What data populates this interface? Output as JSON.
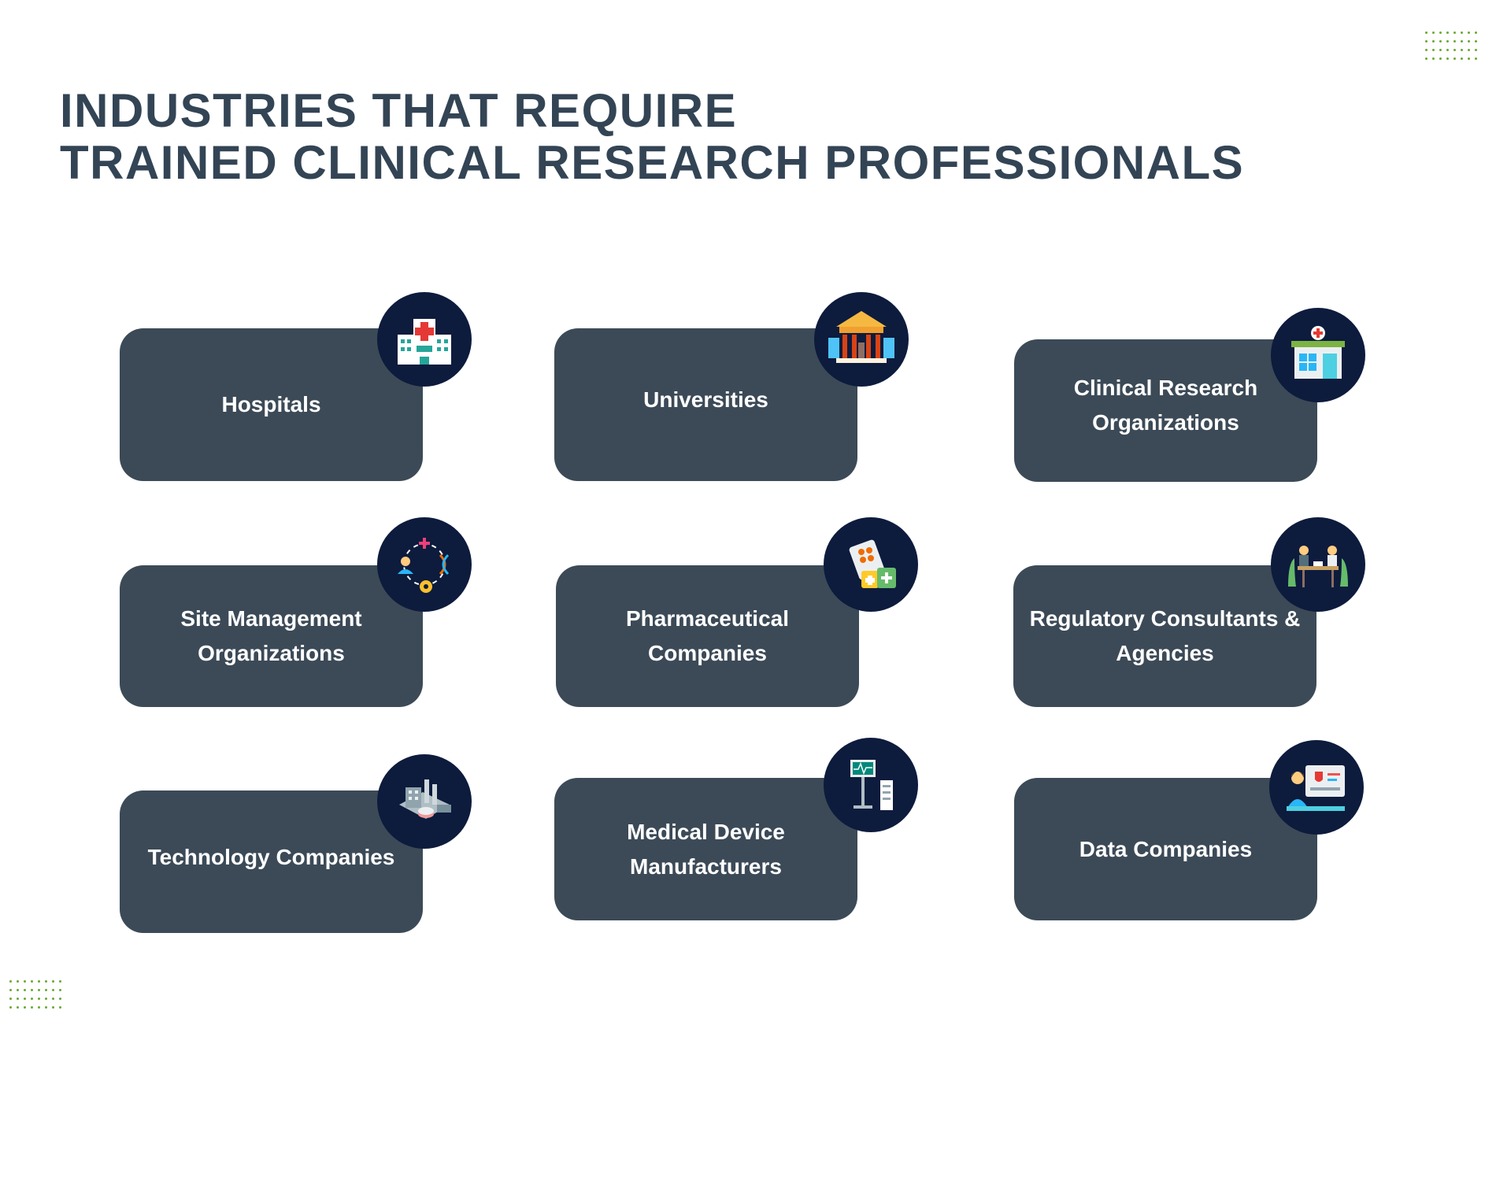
{
  "title": {
    "line1": "INDUSTRIES THAT REQUIRE",
    "line2": "TRAINED CLINICAL RESEARCH PROFESSIONALS"
  },
  "colors": {
    "title": "#334455",
    "card": "#3c4a57",
    "badge": "#0d1b3d",
    "dots": "#6aa832"
  },
  "cards": [
    {
      "label": "Hospitals",
      "icon": "hospital-icon"
    },
    {
      "label": "Universities",
      "icon": "university-icon"
    },
    {
      "label": "Clinical Research Organizations",
      "icon": "clinic-icon"
    },
    {
      "label": "Site Management Organizations",
      "icon": "research-network-icon"
    },
    {
      "label": "Pharmaceutical Companies",
      "icon": "medicine-icon"
    },
    {
      "label": "Regulatory Consultants & Agencies",
      "icon": "consultation-icon"
    },
    {
      "label": "Technology Companies",
      "icon": "factory-icon"
    },
    {
      "label": "Medical Device Manufacturers",
      "icon": "medical-device-icon"
    },
    {
      "label": "Data Companies",
      "icon": "data-analysis-icon"
    }
  ]
}
